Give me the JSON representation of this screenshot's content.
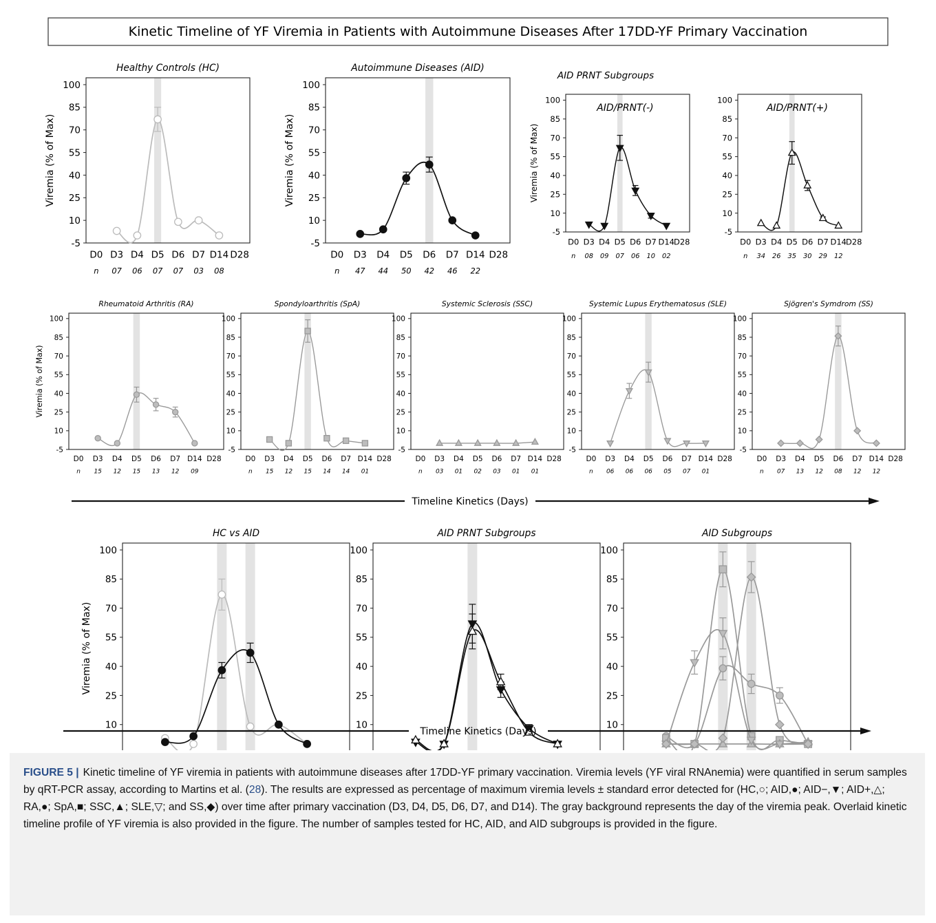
{
  "figure": {
    "title": "Kinetic Timeline of YF Viremia in Patients with Autoimmune Diseases After 17DD-YF Primary Vaccination",
    "ylabel": "Viremia (% of Max)",
    "xlabel": "Timeline Kinetics (Days)",
    "days": [
      "D0",
      "D3",
      "D4",
      "D5",
      "D6",
      "D7",
      "D14",
      "D28"
    ],
    "yticks": [
      -5,
      10,
      25,
      40,
      55,
      70,
      85,
      100
    ],
    "n_label": "n",
    "group_titles": {
      "prnt": "AID PRNT Subgroups"
    }
  },
  "caption": {
    "label": "FIGURE 5 |",
    "text_1": "Kinetic timeline of YF viremia in patients with autoimmune diseases after 17DD-YF primary vaccination. Viremia levels (YF viral RNAnemia) were quantified in serum samples by qRT-PCR assay, according to Martins et al. (",
    "citation": "28",
    "text_2": "). The results are expressed as percentage of maximum viremia levels ± standard error detected for (HC,○; AID,●; AID−,▼; AID+,△; RA,●; SpA,■; SSC,▲; SLE,▽; and SS,◆) over time after primary vaccination (D3, D4, D5, D6, D7, and D14). The gray background represents the day of the viremia peak. Overlaid kinetic timeline profile of YF viremia is also provided in the figure. The number of samples tested for HC, AID, and AID subgroups is provided in the figure."
  },
  "colors": {
    "black": "#111111",
    "gray": "#999999",
    "light": "#bbbbbb",
    "fill": "#bdbdbd",
    "band": "#e3e3e3"
  },
  "chart_data": [
    {
      "title": "Healthy Controls (HC)",
      "type": "line",
      "peak_days": [
        "D5"
      ],
      "series": [
        {
          "marker": "circle-open",
          "color": "light",
          "days": [
            "D3",
            "D4",
            "D5",
            "D6",
            "D7",
            "D14"
          ],
          "values": [
            3,
            0,
            77,
            9,
            10,
            0
          ],
          "err": [
            0,
            0,
            8,
            0,
            0,
            0
          ]
        }
      ],
      "n": [
        "07",
        "06",
        "07",
        "07",
        "03",
        "08"
      ]
    },
    {
      "title": "Autoimmune Diseases (AID)",
      "type": "line",
      "peak_days": [
        "D6"
      ],
      "series": [
        {
          "marker": "circle-filled",
          "color": "black",
          "days": [
            "D3",
            "D4",
            "D5",
            "D6",
            "D7",
            "D14"
          ],
          "values": [
            1,
            4,
            38,
            47,
            10,
            0
          ],
          "err": [
            0,
            0,
            4,
            5,
            0,
            0
          ]
        }
      ],
      "n": [
        "47",
        "44",
        "50",
        "42",
        "46",
        "22"
      ]
    },
    {
      "title": "AID/PRNT(-)",
      "type": "line",
      "peak_days": [
        "D5"
      ],
      "series": [
        {
          "marker": "triangle-down-filled",
          "color": "black",
          "days": [
            "D3",
            "D4",
            "D5",
            "D6",
            "D7",
            "D14"
          ],
          "values": [
            1,
            0,
            62,
            28,
            8,
            0
          ],
          "err": [
            0,
            0,
            10,
            4,
            2,
            0
          ]
        }
      ],
      "n": [
        "08",
        "09",
        "07",
        "06",
        "10",
        "02"
      ]
    },
    {
      "title": "AID/PRNT(+)",
      "type": "line",
      "peak_days": [
        "D5"
      ],
      "series": [
        {
          "marker": "triangle-up-open",
          "color": "black",
          "days": [
            "D3",
            "D4",
            "D5",
            "D6",
            "D7",
            "D14"
          ],
          "values": [
            2,
            0,
            58,
            32,
            6,
            0
          ],
          "err": [
            0,
            0,
            9,
            4,
            1,
            0
          ]
        }
      ],
      "n": [
        "34",
        "26",
        "35",
        "30",
        "29",
        "12"
      ]
    },
    {
      "title": "Rheumatoid Arthritis (RA)",
      "type": "line",
      "peak_days": [
        "D5"
      ],
      "series": [
        {
          "marker": "circle-gray",
          "color": "gray",
          "days": [
            "D3",
            "D4",
            "D5",
            "D6",
            "D7",
            "D14"
          ],
          "values": [
            4,
            0,
            39,
            31,
            25,
            0
          ],
          "err": [
            0,
            0,
            6,
            5,
            4,
            0
          ]
        }
      ],
      "n": [
        "15",
        "12",
        "15",
        "13",
        "12",
        "09"
      ]
    },
    {
      "title": "Spondyloarthritis (SpA)",
      "type": "line",
      "peak_days": [
        "D5"
      ],
      "series": [
        {
          "marker": "square-gray",
          "color": "gray",
          "days": [
            "D3",
            "D4",
            "D5",
            "D6",
            "D7",
            "D14"
          ],
          "values": [
            3,
            0,
            90,
            4,
            2,
            0
          ],
          "err": [
            0,
            0,
            9,
            0,
            0,
            0
          ]
        }
      ],
      "n": [
        "15",
        "12",
        "15",
        "14",
        "14",
        "01"
      ]
    },
    {
      "title": "Systemic Sclerosis (SSC)",
      "type": "line",
      "peak_days": [],
      "series": [
        {
          "marker": "triangle-up-gray",
          "color": "gray",
          "days": [
            "D3",
            "D4",
            "D5",
            "D6",
            "D7",
            "D14"
          ],
          "values": [
            0,
            0,
            0,
            0,
            0,
            1
          ],
          "err": [
            0,
            0,
            0,
            0,
            0,
            0
          ]
        }
      ],
      "n": [
        "03",
        "01",
        "02",
        "03",
        "01",
        "01"
      ]
    },
    {
      "title": "Systemic Lupus Erythematosus (SLE)",
      "type": "line",
      "peak_days": [
        "D5"
      ],
      "series": [
        {
          "marker": "triangle-down-gray",
          "color": "gray",
          "days": [
            "D3",
            "D4",
            "D5",
            "D6",
            "D7",
            "D14"
          ],
          "values": [
            0,
            42,
            57,
            2,
            0,
            0
          ],
          "err": [
            0,
            6,
            8,
            0,
            0,
            0
          ]
        }
      ],
      "n": [
        "06",
        "06",
        "06",
        "05",
        "07",
        "01"
      ]
    },
    {
      "title": "Sjögren's Symdrom (SS)",
      "type": "line",
      "peak_days": [
        "D6"
      ],
      "series": [
        {
          "marker": "diamond-gray",
          "color": "gray",
          "days": [
            "D3",
            "D4",
            "D5",
            "D6",
            "D7",
            "D14"
          ],
          "values": [
            0,
            0,
            3,
            86,
            10,
            0
          ],
          "err": [
            0,
            0,
            0,
            8,
            0,
            0
          ]
        }
      ],
      "n": [
        "07",
        "13",
        "12",
        "08",
        "12",
        "12"
      ]
    },
    {
      "title": "HC vs AID",
      "type": "line",
      "peak_days": [
        "D5",
        "D6"
      ],
      "series": [
        {
          "marker": "circle-open",
          "color": "light",
          "days": [
            "D3",
            "D4",
            "D5",
            "D6",
            "D7",
            "D14"
          ],
          "values": [
            3,
            0,
            77,
            9,
            10,
            0
          ],
          "err": [
            0,
            0,
            8,
            0,
            0,
            0
          ]
        },
        {
          "marker": "circle-filled",
          "color": "black",
          "days": [
            "D3",
            "D4",
            "D5",
            "D6",
            "D7",
            "D14"
          ],
          "values": [
            1,
            4,
            38,
            47,
            10,
            0
          ],
          "err": [
            0,
            0,
            4,
            5,
            0,
            0
          ]
        }
      ]
    },
    {
      "title": "AID  PRNT Subgroups",
      "type": "line",
      "peak_days": [
        "D5"
      ],
      "series": [
        {
          "marker": "triangle-down-filled",
          "color": "black",
          "days": [
            "D3",
            "D4",
            "D5",
            "D6",
            "D7",
            "D14"
          ],
          "values": [
            1,
            0,
            62,
            28,
            8,
            0
          ],
          "err": [
            0,
            0,
            10,
            4,
            2,
            0
          ]
        },
        {
          "marker": "triangle-up-open",
          "color": "black",
          "days": [
            "D3",
            "D4",
            "D5",
            "D6",
            "D7",
            "D14"
          ],
          "values": [
            2,
            0,
            58,
            32,
            6,
            0
          ],
          "err": [
            0,
            0,
            9,
            4,
            1,
            0
          ]
        }
      ]
    },
    {
      "title": "AID Subgroups",
      "type": "line",
      "peak_days": [
        "D5",
        "D6"
      ],
      "series": [
        {
          "marker": "circle-gray",
          "color": "gray",
          "days": [
            "D3",
            "D4",
            "D5",
            "D6",
            "D7",
            "D14"
          ],
          "values": [
            4,
            0,
            39,
            31,
            25,
            0
          ],
          "err": [
            0,
            0,
            6,
            5,
            4,
            0
          ]
        },
        {
          "marker": "square-gray",
          "color": "gray",
          "days": [
            "D3",
            "D4",
            "D5",
            "D6",
            "D7",
            "D14"
          ],
          "values": [
            3,
            0,
            90,
            4,
            2,
            0
          ],
          "err": [
            0,
            0,
            9,
            0,
            0,
            0
          ]
        },
        {
          "marker": "triangle-up-gray",
          "color": "gray",
          "days": [
            "D3",
            "D4",
            "D5",
            "D6",
            "D7",
            "D14"
          ],
          "values": [
            0,
            0,
            0,
            0,
            0,
            1
          ],
          "err": [
            0,
            0,
            0,
            0,
            0,
            0
          ]
        },
        {
          "marker": "triangle-down-gray",
          "color": "gray",
          "days": [
            "D3",
            "D4",
            "D5",
            "D6",
            "D7",
            "D14"
          ],
          "values": [
            0,
            42,
            57,
            2,
            0,
            0
          ],
          "err": [
            0,
            6,
            8,
            0,
            0,
            0
          ]
        },
        {
          "marker": "diamond-gray",
          "color": "gray",
          "days": [
            "D3",
            "D4",
            "D5",
            "D6",
            "D7",
            "D14"
          ],
          "values": [
            0,
            0,
            3,
            86,
            10,
            0
          ],
          "err": [
            0,
            0,
            0,
            8,
            0,
            0
          ]
        }
      ]
    }
  ]
}
